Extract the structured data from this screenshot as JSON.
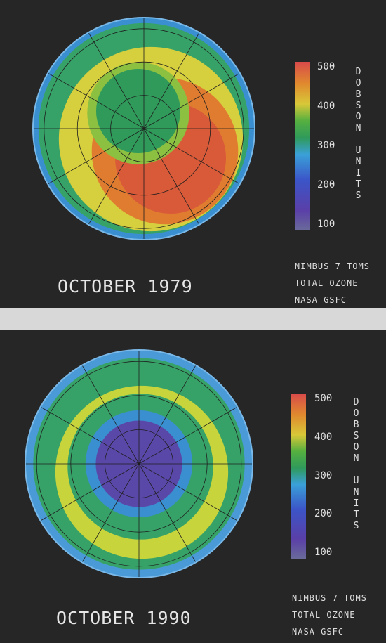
{
  "panels": [
    {
      "title": "OCTOBER 1979",
      "credits": [
        "NIMBUS 7 TOMS",
        "TOTAL OZONE",
        "NASA GSFC"
      ],
      "scale_ticks": [
        "500",
        "400",
        "300",
        "200",
        "100"
      ],
      "scale_unit": "DOBSON UNITS"
    },
    {
      "title": "OCTOBER 1990",
      "credits": [
        "NIMBUS 7 TOMS",
        "TOTAL OZONE",
        "NASA GSFC"
      ],
      "scale_ticks": [
        "500",
        "400",
        "300",
        "200",
        "100"
      ],
      "scale_unit": "DOBSON UNITS"
    }
  ]
}
